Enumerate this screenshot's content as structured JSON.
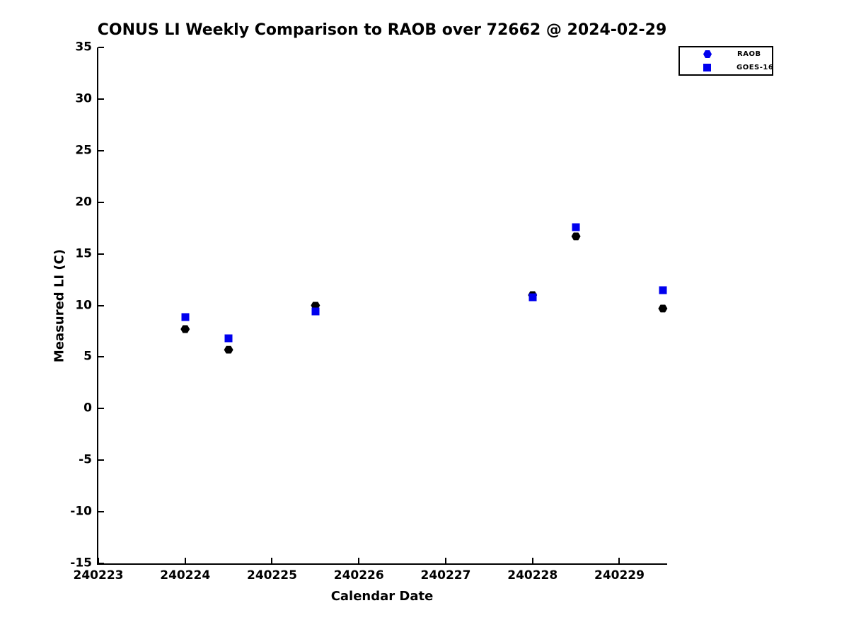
{
  "chart_data": {
    "type": "scatter",
    "title": "CONUS LI Weekly Comparison to RAOB over 72662 @ 2024-02-29",
    "xlabel": "Calendar Date",
    "ylabel": "Measured LI (C)",
    "xlim": [
      240223,
      240229.55
    ],
    "ylim": [
      -15,
      35
    ],
    "xticks": [
      240223,
      240224,
      240225,
      240226,
      240227,
      240228,
      240229
    ],
    "yticks": [
      35,
      30,
      25,
      20,
      15,
      10,
      5,
      0,
      -5,
      -10,
      -15
    ],
    "grid": false,
    "legend_position": "top-right-outside",
    "legend_marker_color": "#0000ee",
    "x": [
      240224,
      240224.5,
      240225.5,
      240228,
      240228.5,
      240229.5
    ],
    "series": [
      {
        "name": "RAOB",
        "marker": "hexagon",
        "color": "#000000",
        "values": [
          7.7,
          5.7,
          10.0,
          11.0,
          16.7,
          9.7
        ]
      },
      {
        "name": "GOES-16",
        "marker": "square",
        "color": "#0000ee",
        "values": [
          8.9,
          6.8,
          9.4,
          10.8,
          17.6,
          11.5
        ]
      }
    ]
  }
}
